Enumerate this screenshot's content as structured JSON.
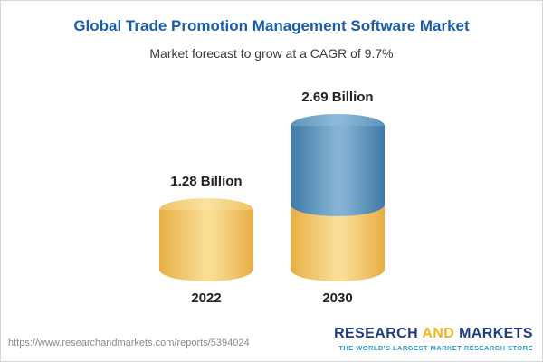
{
  "header": {
    "title": "Global Trade Promotion Management Software Market",
    "subtitle": "Market forecast to grow at a CAGR of 9.7%"
  },
  "chart_data": {
    "type": "bar",
    "categories": [
      "2022",
      "2030"
    ],
    "values": [
      1.28,
      2.69
    ],
    "value_labels": [
      "1.28 Billion",
      "2.69 Billion"
    ],
    "title": "Global Trade Promotion Management Software Market",
    "subtitle": "Market forecast to grow at a CAGR of 9.7%",
    "unit": "Billion USD",
    "cagr": "9.7%",
    "legend_position": "none",
    "grid": false,
    "colors": {
      "bar_2022": "#F2C963",
      "bar_2030_top_segment": "#4F87B0",
      "bar_2030_bottom_segment": "#F2C963"
    }
  },
  "footer": {
    "url": "https://www.researchandmarkets.com/reports/5394024",
    "logo": {
      "word_research": "RESEARCH",
      "word_and": "AND",
      "word_markets": "MARKETS",
      "tagline": "THE WORLD'S LARGEST MARKET RESEARCH STORE"
    }
  }
}
